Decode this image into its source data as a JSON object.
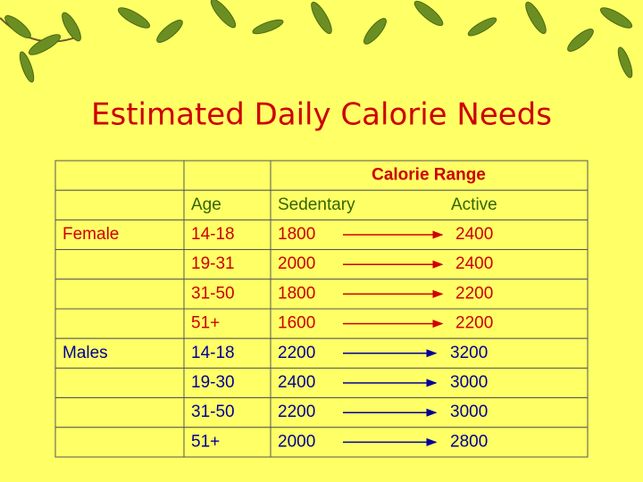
{
  "title": "Estimated Daily Calorie Needs",
  "table": {
    "header": "Calorie Range",
    "subheader": {
      "age": "Age",
      "sedentary": "Sedentary",
      "active": "Active"
    },
    "sections": [
      {
        "group": "Female",
        "rows": [
          {
            "age": "14-18",
            "sedentary": "1800",
            "active": "2400"
          },
          {
            "age": "19-31",
            "sedentary": "2000",
            "active": "2400"
          },
          {
            "age": "31-50",
            "sedentary": "1800",
            "active": "2200"
          },
          {
            "age": "51+",
            "sedentary": "1600",
            "active": "2200"
          }
        ]
      },
      {
        "group": "Males",
        "rows": [
          {
            "age": "14-18",
            "sedentary": "2200",
            "active": "3200"
          },
          {
            "age": "19-30",
            "sedentary": "2400",
            "active": "3000"
          },
          {
            "age": "31-50",
            "sedentary": "2200",
            "active": "3000"
          },
          {
            "age": "51+",
            "sedentary": "2000",
            "active": "2800"
          }
        ]
      }
    ]
  }
}
